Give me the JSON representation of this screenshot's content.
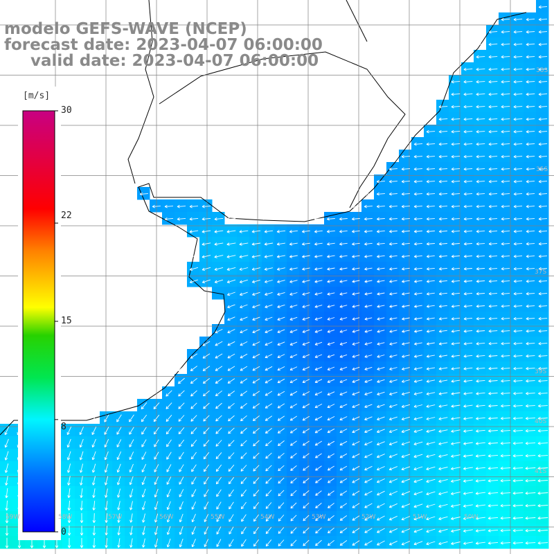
{
  "title_lines": [
    "modelo GEFS-WAVE (NCEP)",
    "forecast date: 2023-04-07 06:00:00",
    "valid date: 2023-04-07 06:00:00"
  ],
  "colorbar": {
    "unit": "[m/s]",
    "ticks": [
      "30",
      "22",
      "15",
      "8",
      "0"
    ],
    "tick_values": [
      30,
      22,
      15,
      8,
      0
    ],
    "range": [
      0,
      30
    ]
  },
  "lat_labels": [
    "33S",
    "35S",
    "37S",
    "39S",
    "40S",
    "41S"
  ],
  "lon_labels": [
    "59W",
    "58W",
    "57W",
    "56W",
    "55W",
    "54W",
    "53W",
    "52W",
    "51W",
    "50W"
  ],
  "colors": {
    "land": "#ffffff",
    "coast": "#000000",
    "grid": "#808080",
    "arrows": "#ffffff"
  },
  "field": {
    "variable": "wind speed / direction (10 m)",
    "dominant_flow": "from east-northeast, turning southward in the south-west",
    "speed_min_ms": 3,
    "speed_max_ms": 9
  }
}
